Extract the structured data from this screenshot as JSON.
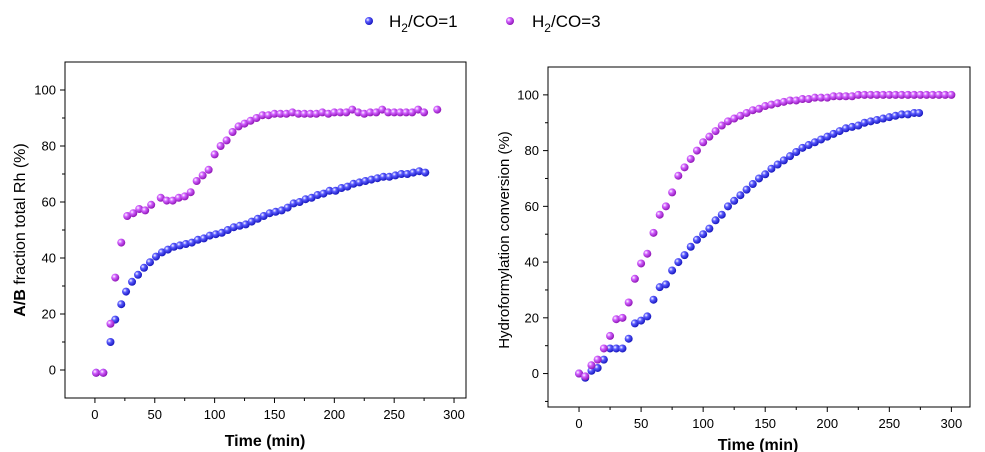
{
  "legend": {
    "items": [
      {
        "label": "H",
        "sub": "2",
        "rest": "/CO=1",
        "color": "#1f1fd6"
      },
      {
        "label": "H",
        "sub": "2",
        "rest": "/CO=3",
        "color": "#a020c8"
      }
    ]
  },
  "chart_data": [
    {
      "type": "scatter",
      "xlabel": "Time (min)",
      "ylabel_bold": "A/B",
      "ylabel_rest": " fraction total Rh (%)",
      "xlim": [
        -25,
        310
      ],
      "ylim": [
        -10,
        110
      ],
      "xticks": [
        0,
        50,
        100,
        150,
        200,
        250,
        300
      ],
      "yticks": [
        0,
        20,
        40,
        60,
        80,
        100
      ],
      "series": [
        {
          "name": "H2/CO=1",
          "color": "#1f1fd6",
          "x": [
            1,
            7,
            13,
            17,
            22,
            26,
            31,
            36,
            41,
            46,
            51,
            56,
            61,
            66,
            71,
            76,
            81,
            86,
            91,
            96,
            101,
            106,
            111,
            116,
            121,
            126,
            131,
            136,
            141,
            146,
            151,
            156,
            161,
            166,
            171,
            176,
            181,
            186,
            191,
            196,
            201,
            206,
            211,
            216,
            221,
            226,
            231,
            236,
            241,
            246,
            251,
            256,
            261,
            266,
            271,
            276
          ],
          "y": [
            -1,
            -1,
            10,
            18,
            23.5,
            28,
            31.5,
            34,
            36.5,
            38.5,
            40.5,
            42,
            43,
            44,
            44.5,
            45,
            45.5,
            46.5,
            47,
            48,
            48.5,
            49,
            50,
            51,
            51.5,
            52,
            53,
            54,
            55,
            56,
            56.5,
            57,
            58,
            59.5,
            60,
            61,
            61.5,
            62.5,
            63,
            64,
            64,
            65,
            65.5,
            66.5,
            67,
            67.5,
            68,
            68.5,
            69,
            69,
            69.5,
            70,
            70,
            70.5,
            71,
            70.5
          ]
        },
        {
          "name": "H2/CO=3",
          "color": "#a020c8",
          "x": [
            1,
            7,
            13,
            17,
            22,
            27,
            32,
            37,
            42,
            47,
            55,
            60,
            65,
            70,
            75,
            80,
            85,
            90,
            95,
            100,
            105,
            110,
            115,
            120,
            125,
            130,
            135,
            140,
            145,
            150,
            155,
            160,
            165,
            170,
            175,
            180,
            185,
            190,
            195,
            200,
            205,
            210,
            215,
            220,
            225,
            230,
            235,
            240,
            245,
            250,
            255,
            260,
            265,
            270,
            275,
            286
          ],
          "y": [
            -1,
            -1,
            16.5,
            33,
            45.5,
            55,
            56,
            57.5,
            57,
            59,
            61.5,
            60.5,
            60.5,
            61.5,
            62,
            63.5,
            67.5,
            69.5,
            71.5,
            77,
            80,
            82,
            85,
            87,
            88,
            89,
            90,
            91,
            91,
            91.5,
            91.5,
            91.5,
            92,
            91.5,
            91.5,
            91.5,
            91.5,
            92,
            91.5,
            92,
            92,
            92,
            93,
            92,
            91.5,
            92,
            92,
            93,
            92,
            92,
            92,
            92,
            92,
            93,
            92,
            93
          ]
        }
      ]
    },
    {
      "type": "scatter",
      "xlabel": "Time (min)",
      "ylabel": "Hydroformylation conversion (%)",
      "xlim": [
        -25,
        315
      ],
      "ylim": [
        -12,
        110
      ],
      "xticks": [
        0,
        50,
        100,
        150,
        200,
        250,
        300
      ],
      "yticks": [
        0,
        20,
        40,
        60,
        80,
        100
      ],
      "series": [
        {
          "name": "H2/CO=1",
          "color": "#1f1fd6",
          "x": [
            0,
            5,
            10,
            15,
            20,
            25,
            30,
            35,
            40,
            45,
            50,
            55,
            60,
            65,
            70,
            75,
            80,
            85,
            90,
            95,
            100,
            105,
            110,
            115,
            120,
            125,
            130,
            135,
            140,
            145,
            150,
            155,
            160,
            165,
            170,
            175,
            180,
            185,
            190,
            195,
            200,
            205,
            210,
            215,
            220,
            225,
            230,
            235,
            240,
            245,
            250,
            255,
            260,
            265,
            270,
            274
          ],
          "y": [
            0,
            -1.5,
            1,
            2,
            5,
            9,
            9,
            9,
            12.5,
            18,
            19,
            20.5,
            26.5,
            31,
            32,
            37,
            40,
            42.5,
            45.5,
            48,
            50,
            52,
            55,
            57,
            60,
            62,
            64,
            66,
            68,
            70,
            71.5,
            73.5,
            75,
            76.5,
            78,
            79.5,
            81,
            82,
            83,
            84,
            85,
            86,
            87,
            88,
            88.5,
            89,
            90,
            90.5,
            91,
            91.5,
            92,
            92.5,
            93,
            93,
            93.5,
            93.5
          ]
        },
        {
          "name": "H2/CO=3",
          "color": "#a020c8",
          "x": [
            0,
            5,
            10,
            15,
            20,
            25,
            30,
            35,
            40,
            45,
            50,
            55,
            60,
            65,
            70,
            75,
            80,
            85,
            90,
            95,
            100,
            105,
            110,
            115,
            120,
            125,
            130,
            135,
            140,
            145,
            150,
            155,
            160,
            165,
            170,
            175,
            180,
            185,
            190,
            195,
            200,
            205,
            210,
            215,
            220,
            225,
            230,
            235,
            240,
            245,
            250,
            255,
            260,
            265,
            270,
            275,
            280,
            285,
            290,
            295,
            300
          ],
          "y": [
            0,
            -1,
            3,
            5,
            9,
            13.5,
            19.5,
            20,
            25.5,
            34,
            39.5,
            43,
            50.5,
            57,
            60,
            65,
            71,
            74,
            77,
            80,
            83,
            85,
            87,
            89,
            90.5,
            91.5,
            92.5,
            93.5,
            94.5,
            95,
            96,
            96.5,
            97,
            97.5,
            98,
            98,
            98.5,
            98.5,
            99,
            99,
            99,
            99.5,
            99.5,
            99.5,
            99.5,
            100,
            100,
            100,
            100,
            100,
            100,
            100,
            100,
            100,
            100,
            100,
            100,
            100,
            100,
            100,
            100
          ]
        }
      ]
    }
  ]
}
